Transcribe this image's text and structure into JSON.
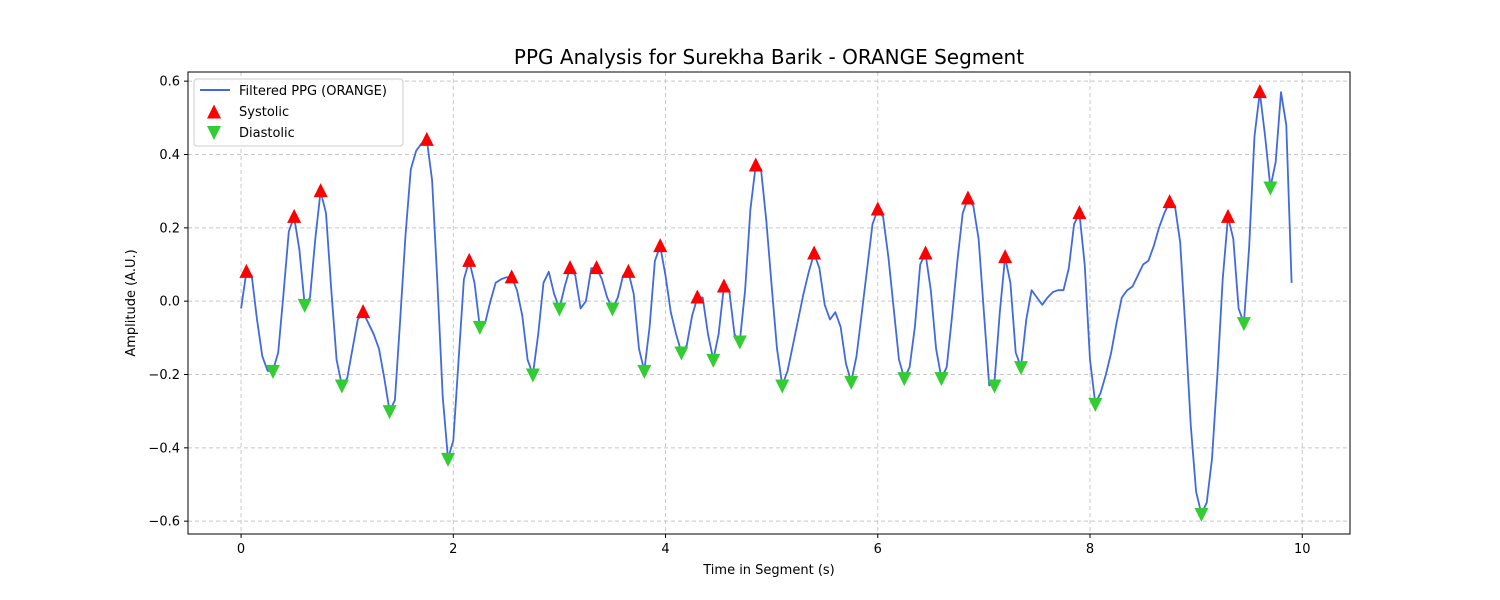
{
  "chart_data": {
    "type": "line",
    "title": "PPG Analysis for Surekha Barik - ORANGE Segment",
    "xlabel": "Time in Segment (s)",
    "ylabel": "Amplitude (A.U.)",
    "xlim": [
      -0.5,
      10.45
    ],
    "ylim": [
      -0.635,
      0.625
    ],
    "xticks": [
      0,
      2,
      4,
      6,
      8,
      10
    ],
    "yticks": [
      -0.6,
      -0.4,
      -0.2,
      0.0,
      0.2,
      0.4,
      0.6
    ],
    "xtick_labels": [
      "0",
      "2",
      "4",
      "6",
      "8",
      "10"
    ],
    "ytick_labels": [
      "−0.6",
      "−0.4",
      "−0.2",
      "0.0",
      "0.2",
      "0.4",
      "0.6"
    ],
    "grid": true,
    "legend_position": "upper-left",
    "colors": {
      "line": "#4169e1",
      "systolic": "#ff0000",
      "diastolic": "#32cd32"
    },
    "series": [
      {
        "name": "Filtered PPG (ORANGE)",
        "kind": "line",
        "x": [
          0.0,
          0.05,
          0.1,
          0.15,
          0.2,
          0.25,
          0.3,
          0.35,
          0.4,
          0.45,
          0.5,
          0.55,
          0.6,
          0.65,
          0.7,
          0.75,
          0.8,
          0.85,
          0.9,
          0.95,
          1.0,
          1.05,
          1.1,
          1.15,
          1.2,
          1.25,
          1.3,
          1.35,
          1.4,
          1.45,
          1.5,
          1.55,
          1.6,
          1.65,
          1.7,
          1.75,
          1.8,
          1.85,
          1.9,
          1.95,
          2.0,
          2.05,
          2.1,
          2.15,
          2.2,
          2.25,
          2.3,
          2.35,
          2.4,
          2.45,
          2.5,
          2.55,
          2.6,
          2.65,
          2.7,
          2.75,
          2.8,
          2.85,
          2.9,
          2.95,
          3.0,
          3.05,
          3.1,
          3.15,
          3.2,
          3.25,
          3.3,
          3.35,
          3.4,
          3.45,
          3.5,
          3.55,
          3.6,
          3.65,
          3.7,
          3.75,
          3.8,
          3.85,
          3.9,
          3.95,
          4.0,
          4.05,
          4.1,
          4.15,
          4.2,
          4.25,
          4.3,
          4.35,
          4.4,
          4.45,
          4.5,
          4.55,
          4.6,
          4.65,
          4.7,
          4.75,
          4.8,
          4.85,
          4.9,
          4.95,
          5.0,
          5.05,
          5.1,
          5.15,
          5.2,
          5.25,
          5.3,
          5.35,
          5.4,
          5.45,
          5.5,
          5.55,
          5.6,
          5.65,
          5.7,
          5.75,
          5.8,
          5.85,
          5.9,
          5.95,
          6.0,
          6.05,
          6.1,
          6.15,
          6.2,
          6.25,
          6.3,
          6.35,
          6.4,
          6.45,
          6.5,
          6.55,
          6.6,
          6.65,
          6.7,
          6.75,
          6.8,
          6.85,
          6.9,
          6.95,
          7.0,
          7.05,
          7.1,
          7.15,
          7.2,
          7.25,
          7.3,
          7.35,
          7.4,
          7.45,
          7.5,
          7.55,
          7.6,
          7.65,
          7.7,
          7.75,
          7.8,
          7.85,
          7.9,
          7.95,
          8.0,
          8.05,
          8.1,
          8.15,
          8.2,
          8.25,
          8.3,
          8.35,
          8.4,
          8.45,
          8.5,
          8.55,
          8.6,
          8.65,
          8.7,
          8.75,
          8.8,
          8.85,
          8.9,
          8.95,
          9.0,
          9.05,
          9.1,
          9.15,
          9.2,
          9.25,
          9.3,
          9.35,
          9.4,
          9.45,
          9.5,
          9.55,
          9.6,
          9.65,
          9.7,
          9.75,
          9.8,
          9.85,
          9.9
        ],
        "y": [
          -0.02,
          0.08,
          0.07,
          -0.05,
          -0.15,
          -0.19,
          -0.19,
          -0.14,
          0.02,
          0.19,
          0.23,
          0.14,
          -0.01,
          0.01,
          0.17,
          0.3,
          0.24,
          0.03,
          -0.16,
          -0.23,
          -0.21,
          -0.13,
          -0.05,
          -0.03,
          -0.06,
          -0.09,
          -0.13,
          -0.21,
          -0.3,
          -0.27,
          -0.05,
          0.18,
          0.36,
          0.41,
          0.43,
          0.44,
          0.33,
          0.05,
          -0.26,
          -0.43,
          -0.38,
          -0.16,
          0.06,
          0.11,
          0.05,
          -0.07,
          -0.06,
          0.0,
          0.05,
          0.06,
          0.065,
          0.065,
          0.03,
          -0.04,
          -0.16,
          -0.2,
          -0.09,
          0.05,
          0.08,
          0.02,
          -0.02,
          0.04,
          0.09,
          0.07,
          -0.02,
          0.0,
          0.09,
          0.09,
          0.06,
          0.01,
          -0.02,
          0.01,
          0.07,
          0.08,
          0.02,
          -0.13,
          -0.19,
          -0.07,
          0.11,
          0.15,
          0.07,
          -0.03,
          -0.09,
          -0.14,
          -0.12,
          -0.04,
          0.01,
          0.01,
          -0.09,
          -0.16,
          -0.09,
          0.04,
          0.03,
          -0.09,
          -0.11,
          0.03,
          0.25,
          0.37,
          0.36,
          0.22,
          0.04,
          -0.13,
          -0.23,
          -0.19,
          -0.12,
          -0.05,
          0.02,
          0.08,
          0.13,
          0.09,
          -0.01,
          -0.05,
          -0.03,
          -0.07,
          -0.17,
          -0.22,
          -0.15,
          -0.03,
          0.09,
          0.21,
          0.25,
          0.23,
          0.12,
          -0.02,
          -0.16,
          -0.21,
          -0.18,
          -0.07,
          0.1,
          0.13,
          0.03,
          -0.13,
          -0.21,
          -0.18,
          -0.04,
          0.11,
          0.24,
          0.28,
          0.26,
          0.17,
          -0.03,
          -0.23,
          -0.22,
          -0.03,
          0.12,
          0.05,
          -0.14,
          -0.18,
          -0.05,
          0.03,
          0.01,
          -0.01,
          0.01,
          0.025,
          0.03,
          0.03,
          0.09,
          0.21,
          0.24,
          0.1,
          -0.16,
          -0.28,
          -0.25,
          -0.2,
          -0.14,
          -0.06,
          0.01,
          0.03,
          0.04,
          0.07,
          0.1,
          0.11,
          0.15,
          0.2,
          0.24,
          0.27,
          0.26,
          0.16,
          -0.08,
          -0.34,
          -0.52,
          -0.58,
          -0.55,
          -0.43,
          -0.2,
          0.06,
          0.23,
          0.17,
          -0.02,
          -0.06,
          0.15,
          0.45,
          0.57,
          0.45,
          0.31,
          0.38,
          0.57,
          0.48,
          0.05
        ]
      },
      {
        "name": "Systolic",
        "kind": "markers",
        "marker": "triangle-up",
        "x": [
          0.05,
          0.5,
          0.75,
          1.15,
          1.75,
          2.15,
          2.55,
          3.1,
          3.35,
          3.65,
          3.95,
          4.3,
          4.55,
          4.85,
          5.4,
          6.0,
          6.45,
          6.85,
          7.2,
          7.9,
          8.75,
          9.3,
          9.6
        ],
        "y": [
          0.08,
          0.23,
          0.3,
          -0.03,
          0.44,
          0.11,
          0.065,
          0.09,
          0.09,
          0.08,
          0.15,
          0.01,
          0.04,
          0.37,
          0.13,
          0.25,
          0.13,
          0.28,
          0.12,
          0.24,
          0.27,
          0.23,
          0.57
        ]
      },
      {
        "name": "Diastolic",
        "kind": "markers",
        "marker": "triangle-down",
        "x": [
          0.3,
          0.6,
          0.95,
          1.4,
          1.95,
          2.25,
          2.75,
          3.0,
          3.5,
          3.8,
          4.15,
          4.45,
          4.7,
          5.1,
          5.75,
          6.25,
          6.6,
          7.1,
          7.35,
          8.05,
          9.05,
          9.45,
          9.7
        ],
        "y": [
          -0.19,
          -0.01,
          -0.23,
          -0.3,
          -0.43,
          -0.07,
          -0.2,
          -0.02,
          -0.02,
          -0.19,
          -0.14,
          -0.16,
          -0.11,
          -0.23,
          -0.22,
          -0.21,
          -0.21,
          -0.23,
          -0.18,
          -0.28,
          -0.58,
          -0.06,
          0.31
        ]
      }
    ]
  }
}
